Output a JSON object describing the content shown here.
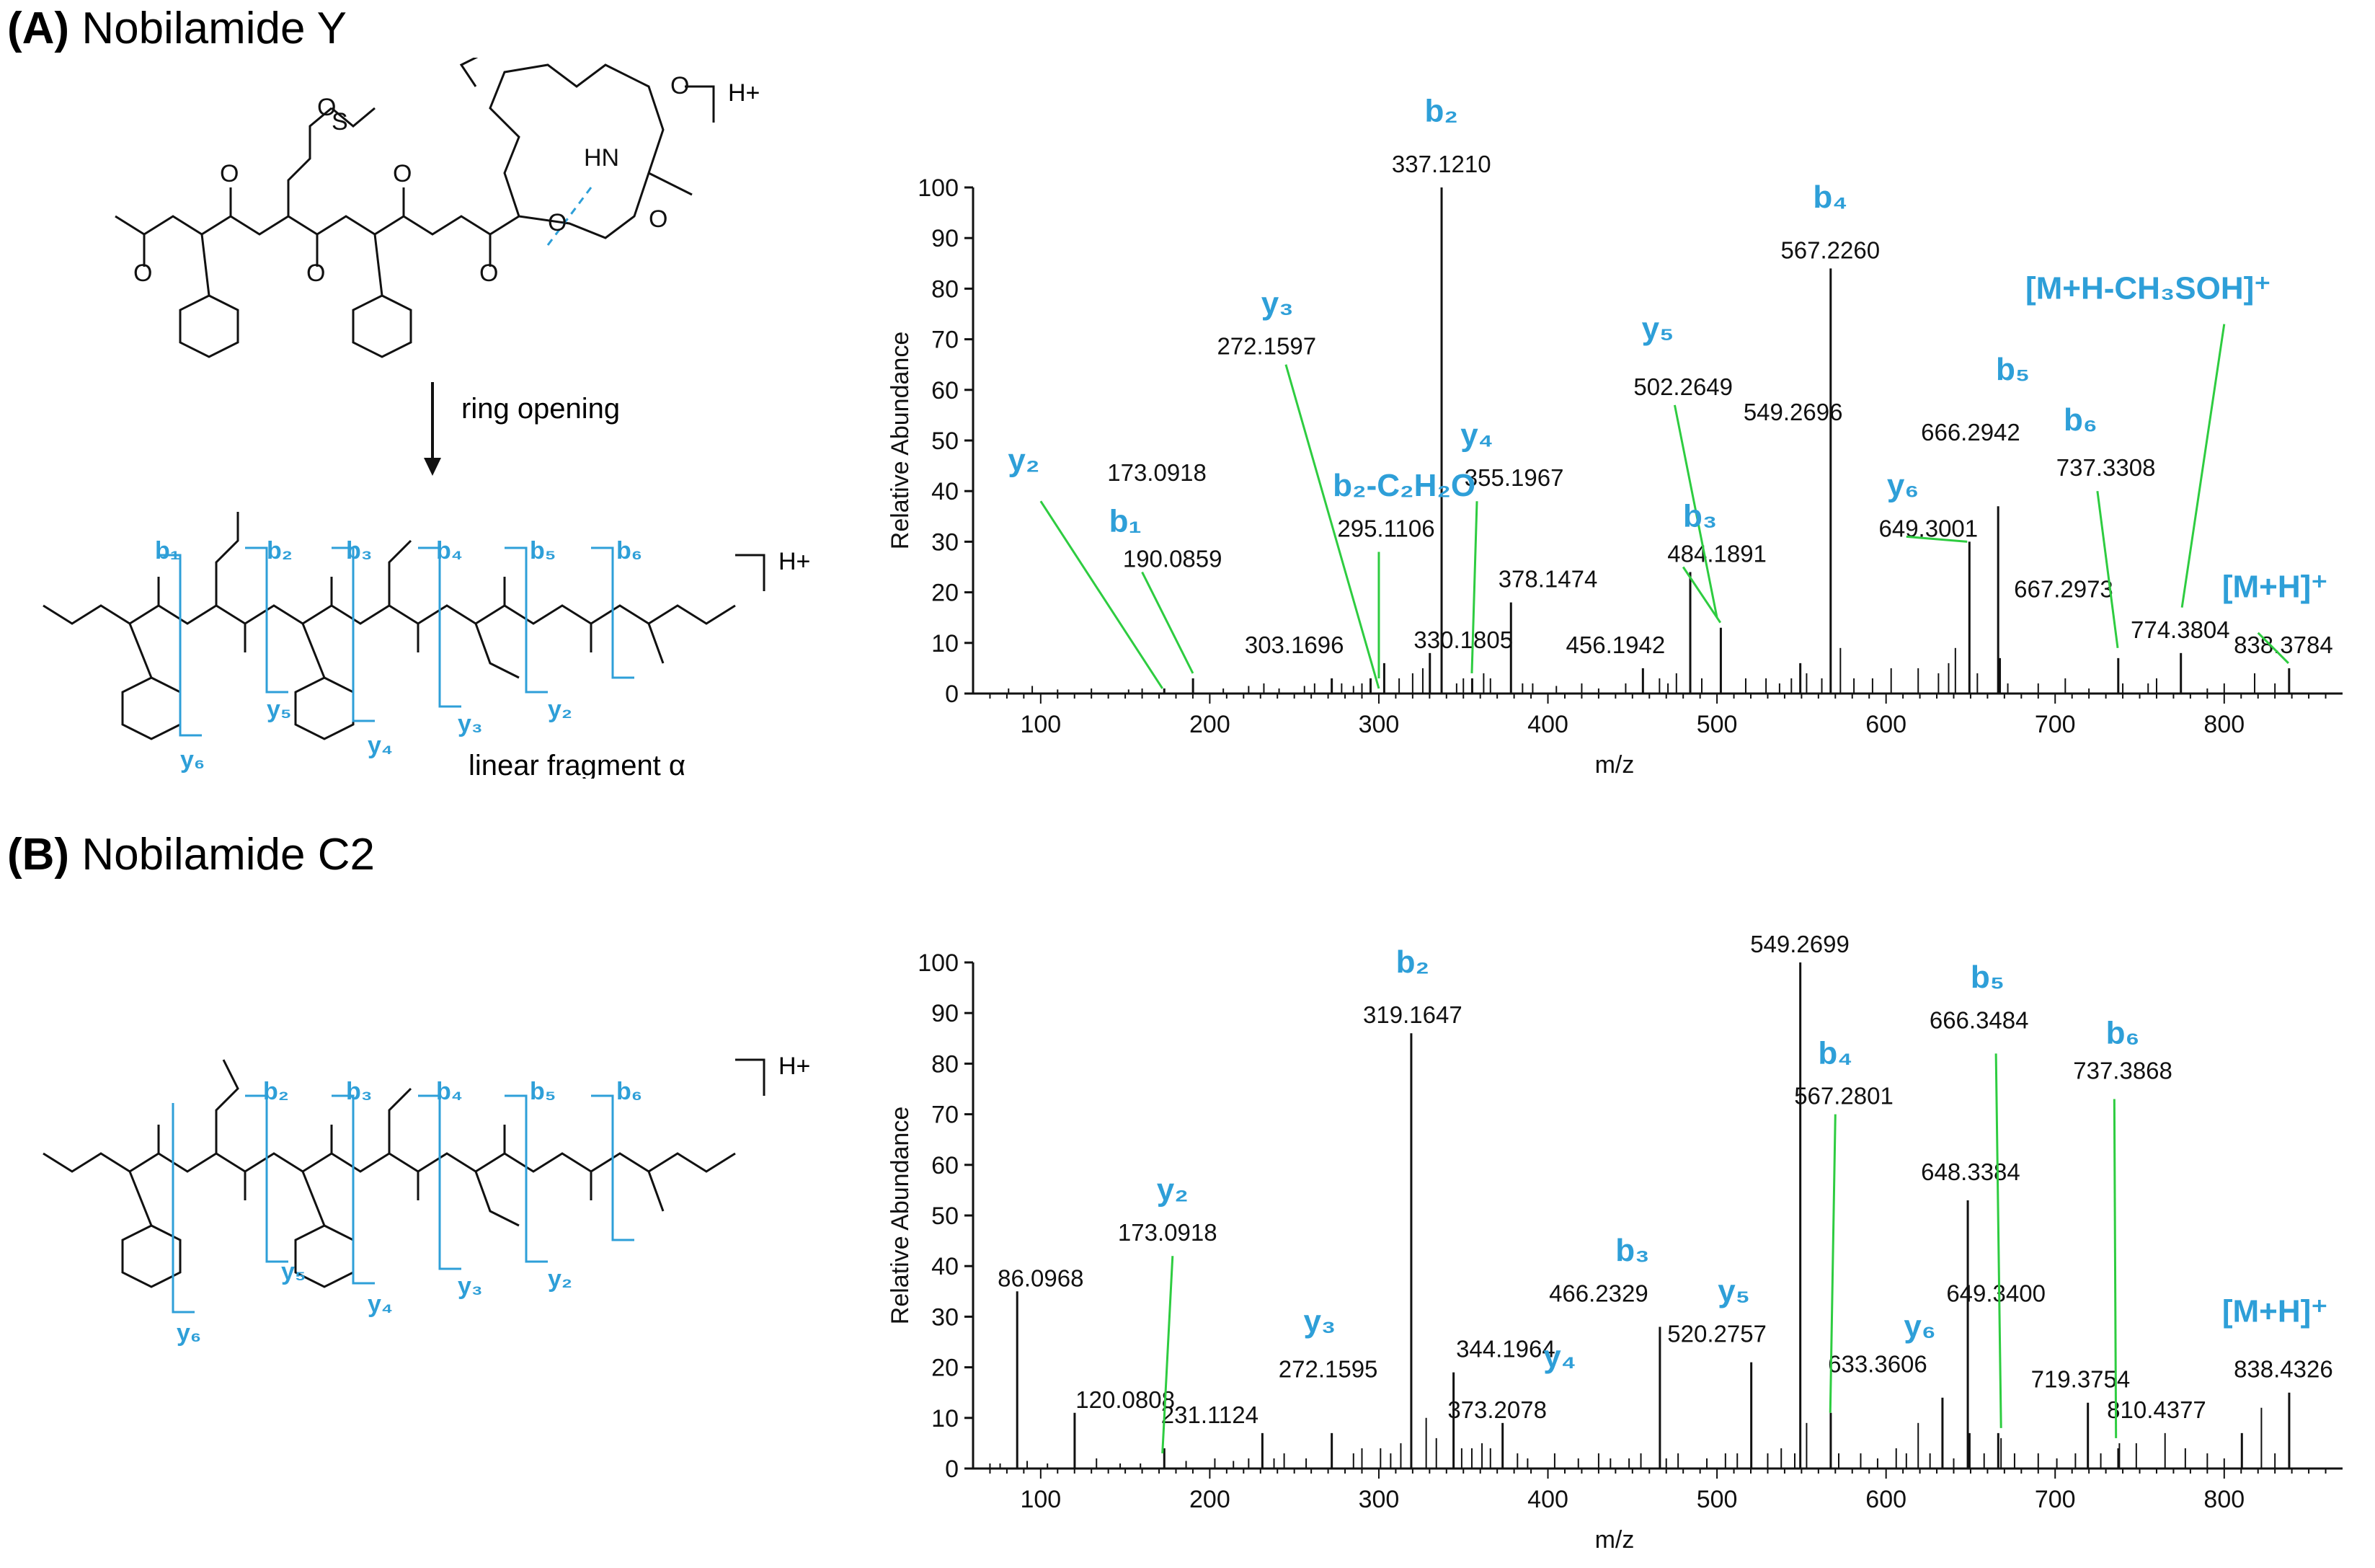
{
  "panels": [
    {
      "letter": "(A)",
      "name": "Nobilamide Y"
    },
    {
      "letter": "(B)",
      "name": "Nobilamide C2"
    }
  ],
  "structure_a": {
    "ring_opening_label": "ring opening",
    "linear_fragment_label": "linear fragment α",
    "charge_label": "H+"
  },
  "structure_b": {
    "charge_label": "H+"
  },
  "colors": {
    "ion_label": "#2e9fd8",
    "annotation_line": "#2ecc40",
    "peak": "#000000"
  },
  "chart_data": [
    {
      "type": "bar",
      "xlabel": "m/z",
      "ylabel": "Relative Abundance",
      "xlim": [
        60,
        870
      ],
      "ylim": [
        0,
        100
      ],
      "xticks": [
        100,
        200,
        300,
        400,
        500,
        600,
        700,
        800
      ],
      "yticks": [
        0,
        10,
        20,
        30,
        40,
        50,
        60,
        70,
        80,
        90,
        100
      ],
      "peaks": [
        {
          "mz": 173.0918,
          "y": 1,
          "label": "173.0918"
        },
        {
          "mz": 190.0859,
          "y": 3,
          "label": "190.0859"
        },
        {
          "mz": 272.1597,
          "y": 3,
          "label": "272.1597"
        },
        {
          "mz": 295.1106,
          "y": 3,
          "label": "295.1106"
        },
        {
          "mz": 303.1696,
          "y": 6,
          "label": "303.1696"
        },
        {
          "mz": 330.1805,
          "y": 8,
          "label": "330.1805"
        },
        {
          "mz": 337.121,
          "y": 100,
          "label": "337.1210"
        },
        {
          "mz": 355.1967,
          "y": 3,
          "label": "355.1967"
        },
        {
          "mz": 378.1474,
          "y": 18,
          "label": "378.1474"
        },
        {
          "mz": 456.1942,
          "y": 5,
          "label": "456.1942"
        },
        {
          "mz": 484.1891,
          "y": 24,
          "label": "484.1891"
        },
        {
          "mz": 502.2649,
          "y": 13,
          "label": "502.2649"
        },
        {
          "mz": 549.2696,
          "y": 6,
          "label": "549.2696"
        },
        {
          "mz": 567.226,
          "y": 84,
          "label": "567.2260"
        },
        {
          "mz": 649.3001,
          "y": 30,
          "label": "649.3001"
        },
        {
          "mz": 666.2942,
          "y": 37,
          "label": "666.2942"
        },
        {
          "mz": 667.2973,
          "y": 7,
          "label": "667.2973"
        },
        {
          "mz": 737.3308,
          "y": 7,
          "label": "737.3308"
        },
        {
          "mz": 774.3804,
          "y": 8,
          "label": "774.3804"
        },
        {
          "mz": 838.3784,
          "y": 5,
          "label": "838.3784"
        }
      ],
      "minor_peaks": [
        [
          81,
          1
        ],
        [
          95,
          1.5
        ],
        [
          110,
          0.8
        ],
        [
          130,
          1
        ],
        [
          152,
          0.8
        ],
        [
          160,
          1
        ],
        [
          208,
          1
        ],
        [
          223,
          1.5
        ],
        [
          232,
          2
        ],
        [
          241,
          1
        ],
        [
          256,
          1.5
        ],
        [
          262,
          2
        ],
        [
          278,
          2
        ],
        [
          285,
          1.5
        ],
        [
          290,
          2
        ],
        [
          312,
          3
        ],
        [
          320,
          4
        ],
        [
          326,
          5
        ],
        [
          346,
          2
        ],
        [
          350,
          3
        ],
        [
          362,
          4
        ],
        [
          366,
          3
        ],
        [
          385,
          2
        ],
        [
          391,
          2
        ],
        [
          405,
          1.5
        ],
        [
          420,
          2
        ],
        [
          430,
          1
        ],
        [
          446,
          2
        ],
        [
          466,
          3
        ],
        [
          471,
          2
        ],
        [
          476,
          4
        ],
        [
          491,
          3
        ],
        [
          517,
          3
        ],
        [
          529,
          3
        ],
        [
          537,
          2
        ],
        [
          544,
          3
        ],
        [
          553,
          4
        ],
        [
          562,
          3
        ],
        [
          573,
          9
        ],
        [
          581,
          3
        ],
        [
          592,
          3
        ],
        [
          603,
          5
        ],
        [
          619,
          5
        ],
        [
          631,
          4
        ],
        [
          637,
          6
        ],
        [
          641,
          9
        ],
        [
          654,
          4
        ],
        [
          672,
          2
        ],
        [
          690,
          2
        ],
        [
          706,
          3
        ],
        [
          720,
          1
        ],
        [
          740,
          2
        ],
        [
          755,
          2
        ],
        [
          760,
          3
        ],
        [
          790,
          1
        ],
        [
          800,
          2
        ],
        [
          818,
          4
        ],
        [
          830,
          2
        ]
      ],
      "ion_annotations": [
        {
          "text": "b₂",
          "peak": "337.1210"
        },
        {
          "text": "b₄",
          "peak": "567.2260"
        },
        {
          "text": "y₃",
          "peak": "272.1597"
        },
        {
          "text": "y₅",
          "peak": "502.2649"
        },
        {
          "text": "[M+H-CH₃SOH]⁺",
          "peak": "774.3804"
        },
        {
          "text": "b₅",
          "peak": "666.2942"
        },
        {
          "text": "y₂",
          "peak": "173.0918"
        },
        {
          "text": "b₂-C₂H₂O",
          "peak": "295.1106"
        },
        {
          "text": "y₄",
          "peak": "355.1967"
        },
        {
          "text": "b₆",
          "peak": "737.3308"
        },
        {
          "text": "b₁",
          "peak": "190.0859"
        },
        {
          "text": "y₆",
          "peak": "649.3001"
        },
        {
          "text": "b₃",
          "peak": "484.1891"
        },
        {
          "text": "[M+H]⁺",
          "peak": "838.3784"
        }
      ]
    },
    {
      "type": "bar",
      "xlabel": "m/z",
      "ylabel": "Relative Abundance",
      "xlim": [
        60,
        870
      ],
      "ylim": [
        0,
        100
      ],
      "xticks": [
        100,
        200,
        300,
        400,
        500,
        600,
        700,
        800
      ],
      "yticks": [
        0,
        10,
        20,
        30,
        40,
        50,
        60,
        70,
        80,
        90,
        100
      ],
      "peaks": [
        {
          "mz": 86.0968,
          "y": 35,
          "label": "86.0968"
        },
        {
          "mz": 120.0808,
          "y": 11,
          "label": "120.0808"
        },
        {
          "mz": 173.0918,
          "y": 4,
          "label": "173.0918"
        },
        {
          "mz": 231.1124,
          "y": 7,
          "label": "231.1124"
        },
        {
          "mz": 272.1595,
          "y": 7,
          "label": "272.1595"
        },
        {
          "mz": 319.1647,
          "y": 86,
          "label": "319.1647"
        },
        {
          "mz": 344.1964,
          "y": 19,
          "label": "344.1964"
        },
        {
          "mz": 373.2078,
          "y": 9,
          "label": "373.2078"
        },
        {
          "mz": 466.2329,
          "y": 28,
          "label": "466.2329"
        },
        {
          "mz": 520.2757,
          "y": 21,
          "label": "520.2757"
        },
        {
          "mz": 549.2699,
          "y": 100,
          "label": "549.2699"
        },
        {
          "mz": 567.2801,
          "y": 11,
          "label": "567.2801"
        },
        {
          "mz": 633.3606,
          "y": 14,
          "label": "633.3606"
        },
        {
          "mz": 648.3384,
          "y": 53,
          "label": "648.3384"
        },
        {
          "mz": 649.34,
          "y": 7,
          "label": "649.3400"
        },
        {
          "mz": 666.3484,
          "y": 7,
          "label": "666.3484"
        },
        {
          "mz": 719.3754,
          "y": 13,
          "label": "719.3754"
        },
        {
          "mz": 737.3868,
          "y": 4,
          "label": "737.3868"
        },
        {
          "mz": 810.4377,
          "y": 7,
          "label": "810.4377"
        },
        {
          "mz": 838.4326,
          "y": 15,
          "label": "838.4326"
        }
      ],
      "minor_peaks": [
        [
          70,
          1
        ],
        [
          76,
          1
        ],
        [
          92,
          1.5
        ],
        [
          104,
          1
        ],
        [
          133,
          2
        ],
        [
          147,
          1
        ],
        [
          159,
          1
        ],
        [
          186,
          1.5
        ],
        [
          203,
          2
        ],
        [
          214,
          1.5
        ],
        [
          223,
          2
        ],
        [
          238,
          2
        ],
        [
          244,
          3
        ],
        [
          257,
          2
        ],
        [
          285,
          3
        ],
        [
          290,
          4
        ],
        [
          301,
          4
        ],
        [
          307,
          3
        ],
        [
          313,
          5
        ],
        [
          328,
          10
        ],
        [
          334,
          6
        ],
        [
          349,
          4
        ],
        [
          355,
          4
        ],
        [
          361,
          5
        ],
        [
          366,
          4
        ],
        [
          382,
          3
        ],
        [
          388,
          2
        ],
        [
          404,
          3
        ],
        [
          418,
          2
        ],
        [
          430,
          3
        ],
        [
          437,
          2
        ],
        [
          448,
          2
        ],
        [
          455,
          3
        ],
        [
          470,
          2
        ],
        [
          477,
          3
        ],
        [
          494,
          2
        ],
        [
          505,
          3
        ],
        [
          512,
          3
        ],
        [
          530,
          3
        ],
        [
          538,
          4
        ],
        [
          546,
          3
        ],
        [
          553,
          9
        ],
        [
          572,
          3
        ],
        [
          585,
          3
        ],
        [
          595,
          2
        ],
        [
          606,
          4
        ],
        [
          612,
          3
        ],
        [
          619,
          9
        ],
        [
          626,
          3
        ],
        [
          640,
          2
        ],
        [
          658,
          3
        ],
        [
          668,
          6
        ],
        [
          676,
          3
        ],
        [
          690,
          3
        ],
        [
          701,
          2
        ],
        [
          712,
          3
        ],
        [
          727,
          3
        ],
        [
          738,
          5
        ],
        [
          748,
          5
        ],
        [
          765,
          7
        ],
        [
          777,
          4
        ],
        [
          790,
          3
        ],
        [
          800,
          2
        ],
        [
          822,
          12
        ],
        [
          830,
          3
        ]
      ],
      "ion_annotations": [
        {
          "text": "b₂",
          "peak": "319.1647"
        },
        {
          "text": "b₅",
          "peak": "666.3484"
        },
        {
          "text": "b₄",
          "peak": "567.2801"
        },
        {
          "text": "b₆",
          "peak": "737.3868"
        },
        {
          "text": "y₂",
          "peak": "173.0918"
        },
        {
          "text": "b₃",
          "peak": "466.2329"
        },
        {
          "text": "y₅",
          "peak": "520.2757"
        },
        {
          "text": "y₆",
          "peak": "633.3606"
        },
        {
          "text": "[M+H]⁺",
          "peak": "838.4326"
        },
        {
          "text": "y₃",
          "peak": "272.1595"
        },
        {
          "text": "y₄",
          "peak": "373.2078"
        }
      ]
    }
  ]
}
